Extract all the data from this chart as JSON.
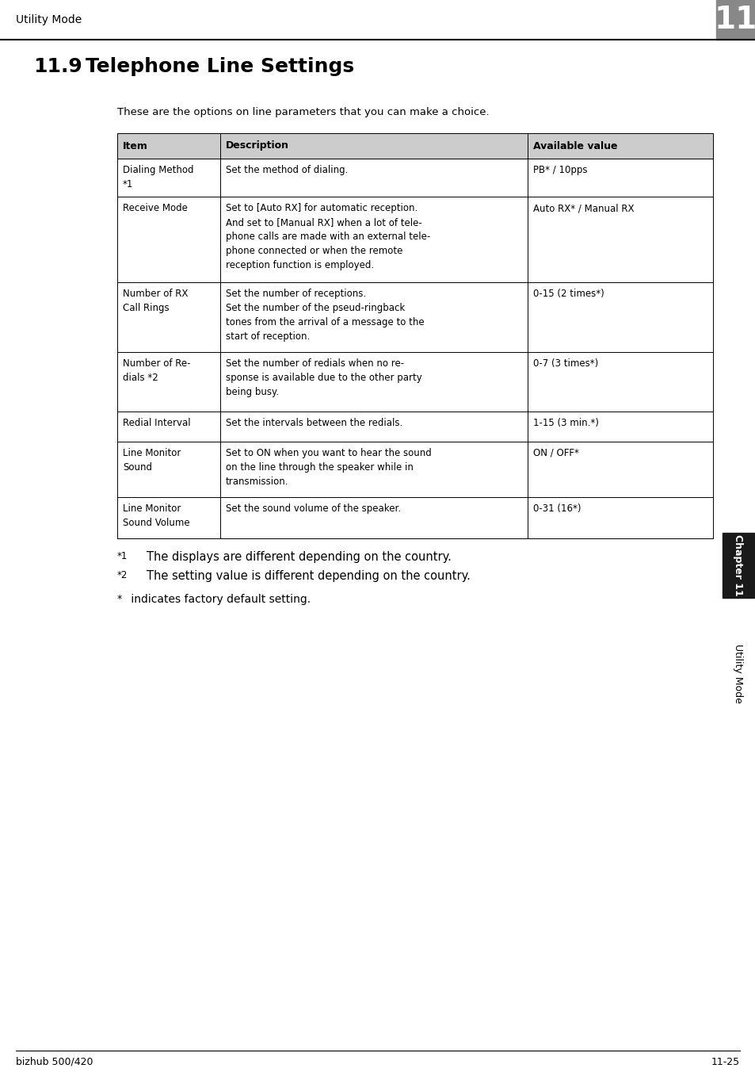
{
  "page_title": "Utility Mode",
  "chapter_num": "11",
  "section_num": "11.9",
  "section_title": "Telephone Line Settings",
  "intro_text": "These are the options on line parameters that you can make a choice.",
  "table_headers": [
    "Item",
    "Description",
    "Available value"
  ],
  "table_rows": [
    {
      "item": "Dialing Method\n*1",
      "description": "Set the method of dialing.",
      "value": "PB* / 10pps"
    },
    {
      "item": "Receive Mode",
      "description": "Set to [Auto RX] for automatic reception.\nAnd set to [Manual RX] when a lot of tele-\nphone calls are made with an external tele-\nphone connected or when the remote\nreception function is employed.",
      "value": "Auto RX* / Manual RX"
    },
    {
      "item": "Number of RX\nCall Rings",
      "description": "Set the number of receptions.\nSet the number of the pseud-ringback\ntones from the arrival of a message to the\nstart of reception.",
      "value": "0-15 (2 times*)"
    },
    {
      "item": "Number of Re-\ndials *2",
      "description": "Set the number of redials when no re-\nsponse is available due to the other party\nbeing busy.",
      "value": "0-7 (3 times*)"
    },
    {
      "item": "Redial Interval",
      "description": "Set the intervals between the redials.",
      "value": "1-15 (3 min.*)"
    },
    {
      "item": "Line Monitor\nSound",
      "description": "Set to ON when you want to hear the sound\non the line through the speaker while in\ntransmission.",
      "value": "ON / OFF*"
    },
    {
      "item": "Line Monitor\nSound Volume",
      "description": "Set the sound volume of the speaker.",
      "value": "0-31 (16*)"
    }
  ],
  "footnote1_marker": "*1",
  "footnote1_text": "The displays are different depending on the country.",
  "footnote2_marker": "*2",
  "footnote2_text": "The setting value is different depending on the country.",
  "asterisk_note_marker": "*",
  "asterisk_note_text": " indicates factory default setting.",
  "footer_left": "bizhub 500/420",
  "footer_right": "11-25",
  "sidebar_chapter": "Chapter 11",
  "sidebar_utility": "Utility Mode",
  "bg_color": "#ffffff",
  "table_header_bg": "#cccccc",
  "sidebar_chapter_bg": "#1a1a1a",
  "sidebar_chapter_fg": "#ffffff",
  "chapter_box_bg": "#888888",
  "chapter_box_fg": "#ffffff"
}
